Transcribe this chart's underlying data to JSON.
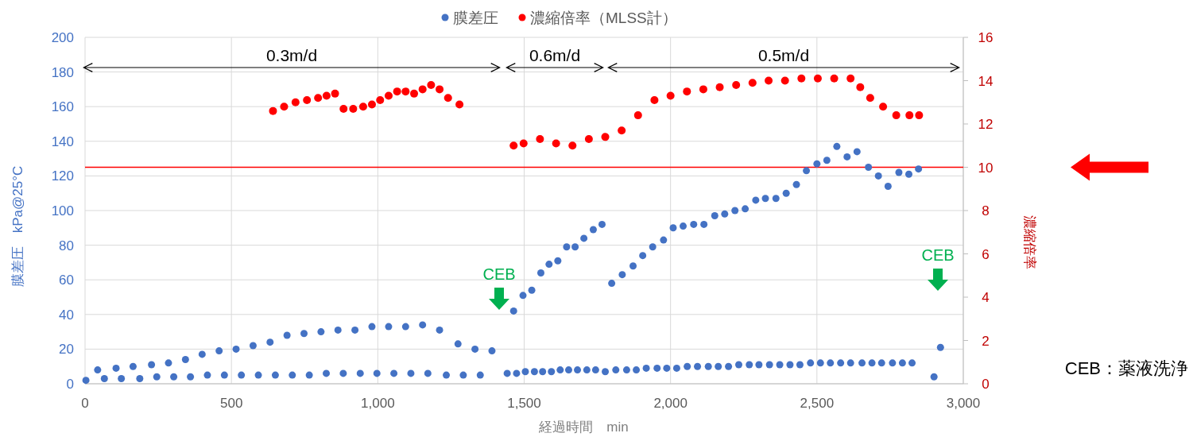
{
  "chart_data": {
    "type": "scatter",
    "xlabel": "経過時間　min",
    "ylabel": "膜差圧　kPa@25°C",
    "y2label": "濃縮倍率",
    "xlim": [
      0,
      3000
    ],
    "xticks": [
      0,
      500,
      {
        "value": 1000,
        "label": "1,000"
      },
      {
        "value": 1500,
        "label": "1,500"
      },
      {
        "value": 2000,
        "label": "2,000"
      },
      {
        "value": 2500,
        "label": "2,500"
      },
      {
        "value": 3000,
        "label": "3,000"
      }
    ],
    "ylim": [
      0,
      200
    ],
    "yticks": [
      0,
      20,
      40,
      60,
      80,
      100,
      120,
      140,
      160,
      180,
      200
    ],
    "y2lim": [
      0,
      16
    ],
    "y2ticks": [
      0,
      2,
      4,
      6,
      8,
      10,
      12,
      14,
      16
    ],
    "grid": true,
    "legend": "top",
    "marker": "circle",
    "series": [
      {
        "name": "膜差圧",
        "color": "#4472c4",
        "x": [
          3,
          43,
          66,
          106,
          124,
          164,
          187,
          227,
          245,
          285,
          303,
          343,
          360,
          400,
          418,
          458,
          476,
          516,
          534,
          574,
          592,
          632,
          650,
          690,
          708,
          748,
          766,
          806,
          824,
          864,
          882,
          922,
          940,
          980,
          997,
          1037,
          1055,
          1095,
          1113,
          1153,
          1171,
          1211,
          1234,
          1274,
          1292,
          1332,
          1350,
          1390,
          1442,
          1464,
          1474,
          1496,
          1504,
          1526,
          1535,
          1557,
          1563,
          1585,
          1593,
          1615,
          1623,
          1645,
          1652,
          1674,
          1682,
          1704,
          1714,
          1736,
          1744,
          1766,
          1777,
          1799,
          1813,
          1835,
          1850,
          1872,
          1883,
          1905,
          1917,
          1939,
          1954,
          1976,
          1987,
          2009,
          2021,
          2043,
          2057,
          2079,
          2092,
          2114,
          2129,
          2151,
          2163,
          2185,
          2198,
          2220,
          2233,
          2255,
          2269,
          2291,
          2302,
          2324,
          2338,
          2360,
          2373,
          2395,
          2408,
          2430,
          2442,
          2464,
          2478,
          2500,
          2512,
          2534,
          2546,
          2568,
          2581,
          2603,
          2615,
          2637,
          2654,
          2676,
          2688,
          2710,
          2721,
          2743,
          2758,
          2780,
          2792,
          2814,
          2825,
          2847,
          2900,
          2922
        ],
        "values": [
          2,
          8,
          3,
          9,
          3,
          10,
          3,
          11,
          4,
          12,
          4,
          14,
          4,
          17,
          5,
          19,
          5,
          20,
          5,
          22,
          5,
          24,
          5,
          28,
          5,
          29,
          5,
          30,
          6,
          31,
          6,
          31,
          6,
          33,
          6,
          33,
          6,
          33,
          6,
          34,
          6,
          31,
          5,
          23,
          5,
          20,
          5,
          19,
          6,
          42,
          6,
          51,
          7,
          54,
          7,
          64,
          7,
          69,
          7,
          71,
          8,
          79,
          8,
          79,
          8,
          84,
          8,
          89,
          8,
          92,
          7,
          58,
          8,
          63,
          8,
          68,
          8,
          74,
          9,
          79,
          9,
          83,
          9,
          90,
          9,
          91,
          10,
          92,
          10,
          92,
          10,
          97,
          10,
          98,
          10,
          100,
          11,
          101,
          11,
          106,
          11,
          107,
          11,
          107,
          11,
          110,
          11,
          115,
          11,
          123,
          12,
          127,
          12,
          129,
          12,
          137,
          12,
          131,
          12,
          134,
          12,
          125,
          12,
          120,
          12,
          114,
          12,
          122,
          12,
          121,
          12,
          124,
          4,
          21
        ]
      },
      {
        "name": "濃縮倍率（MLSS計）",
        "color": "#ff0000",
        "axis": "y2",
        "x": [
          642,
          680,
          719,
          758,
          796,
          825,
          854,
          883,
          916,
          950,
          980,
          1008,
          1037,
          1066,
          1095,
          1124,
          1153,
          1182,
          1211,
          1240,
          1279,
          1464,
          1498,
          1554,
          1609,
          1665,
          1721,
          1777,
          1833,
          1889,
          1945,
          2000,
          2056,
          2112,
          2168,
          2224,
          2280,
          2335,
          2391,
          2447,
          2503,
          2559,
          2615,
          2648,
          2682,
          2726,
          2771,
          2816,
          2849
        ],
        "values": [
          12.6,
          12.8,
          13.0,
          13.1,
          13.2,
          13.3,
          13.4,
          12.7,
          12.7,
          12.8,
          12.9,
          13.1,
          13.3,
          13.5,
          13.5,
          13.4,
          13.6,
          13.8,
          13.6,
          13.2,
          12.9,
          11.0,
          11.1,
          11.3,
          11.1,
          11.0,
          11.3,
          11.4,
          11.7,
          12.4,
          13.1,
          13.3,
          13.5,
          13.6,
          13.7,
          13.8,
          13.9,
          14.0,
          14.0,
          14.1,
          14.1,
          14.1,
          14.1,
          13.7,
          13.2,
          12.8,
          12.4,
          12.4,
          12.4
        ]
      }
    ],
    "ref_lines": [
      {
        "axis": "y2",
        "value": 10,
        "color": "#ff0000"
      }
    ],
    "annotations": [
      "0.3m/d",
      "0.6m/d",
      "0.5m/d",
      "CEB",
      "CEB",
      "CEB：薬液洗浄"
    ]
  }
}
